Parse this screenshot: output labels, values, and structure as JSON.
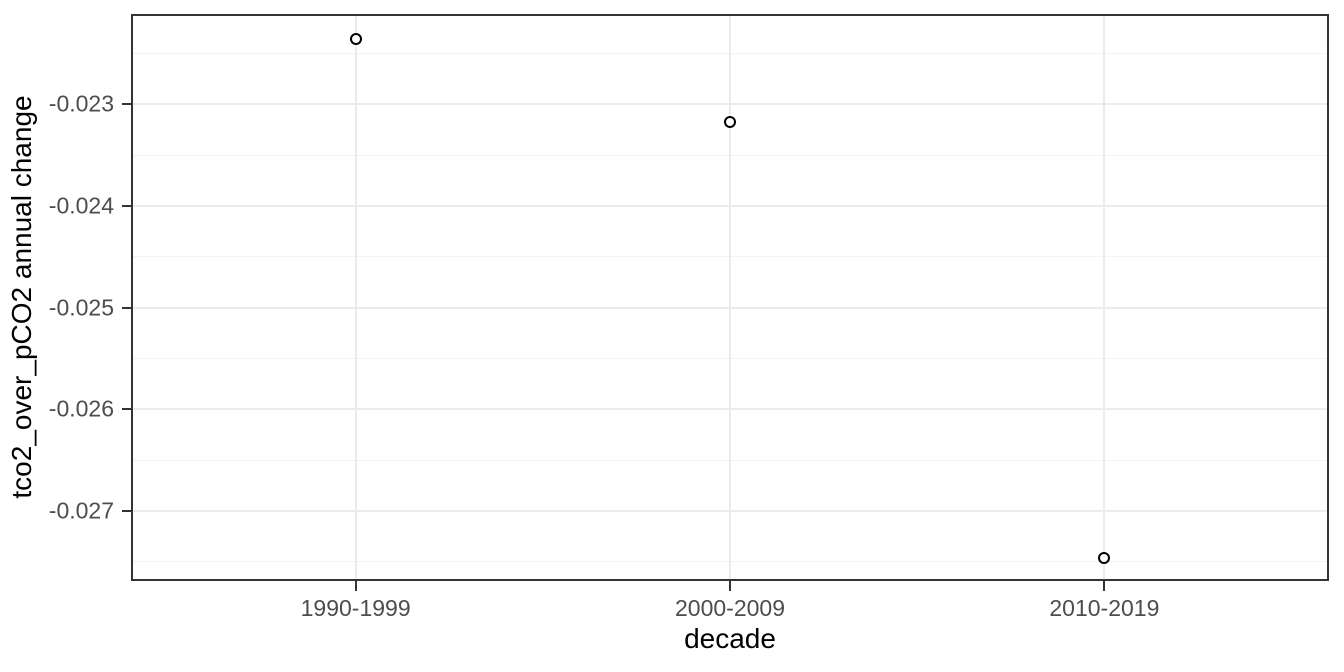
{
  "chart_data": {
    "type": "scatter",
    "title": "",
    "xlabel": "decade",
    "ylabel": "tco2_over_pCO2 annual change",
    "categories": [
      "1990-1999",
      "2000-2009",
      "2010-2019"
    ],
    "series": [
      {
        "name": "tco2_over_pCO2 annual change",
        "values": [
          -0.02236,
          -0.02317,
          -0.02746
        ]
      }
    ],
    "ytick_values": [
      -0.023,
      -0.024,
      -0.025,
      -0.026,
      -0.027
    ],
    "ytick_labels": [
      "-0.023",
      "-0.024",
      "-0.025",
      "-0.026",
      "-0.027"
    ],
    "ylim": [
      -0.02769,
      -0.02211
    ],
    "minor_grid_step": 0.0005,
    "grid": true,
    "legend": false,
    "marker": "open-circle",
    "colors": {
      "background": "#ffffff",
      "panel_background": "#ffffff",
      "panel_border": "#333333",
      "grid_major": "#ebebeb",
      "grid_minor": "#f3f3f3",
      "tick_mark": "#333333",
      "tick_label": "#4d4d4d",
      "axis_title": "#000000",
      "point_stroke": "#000000"
    }
  }
}
